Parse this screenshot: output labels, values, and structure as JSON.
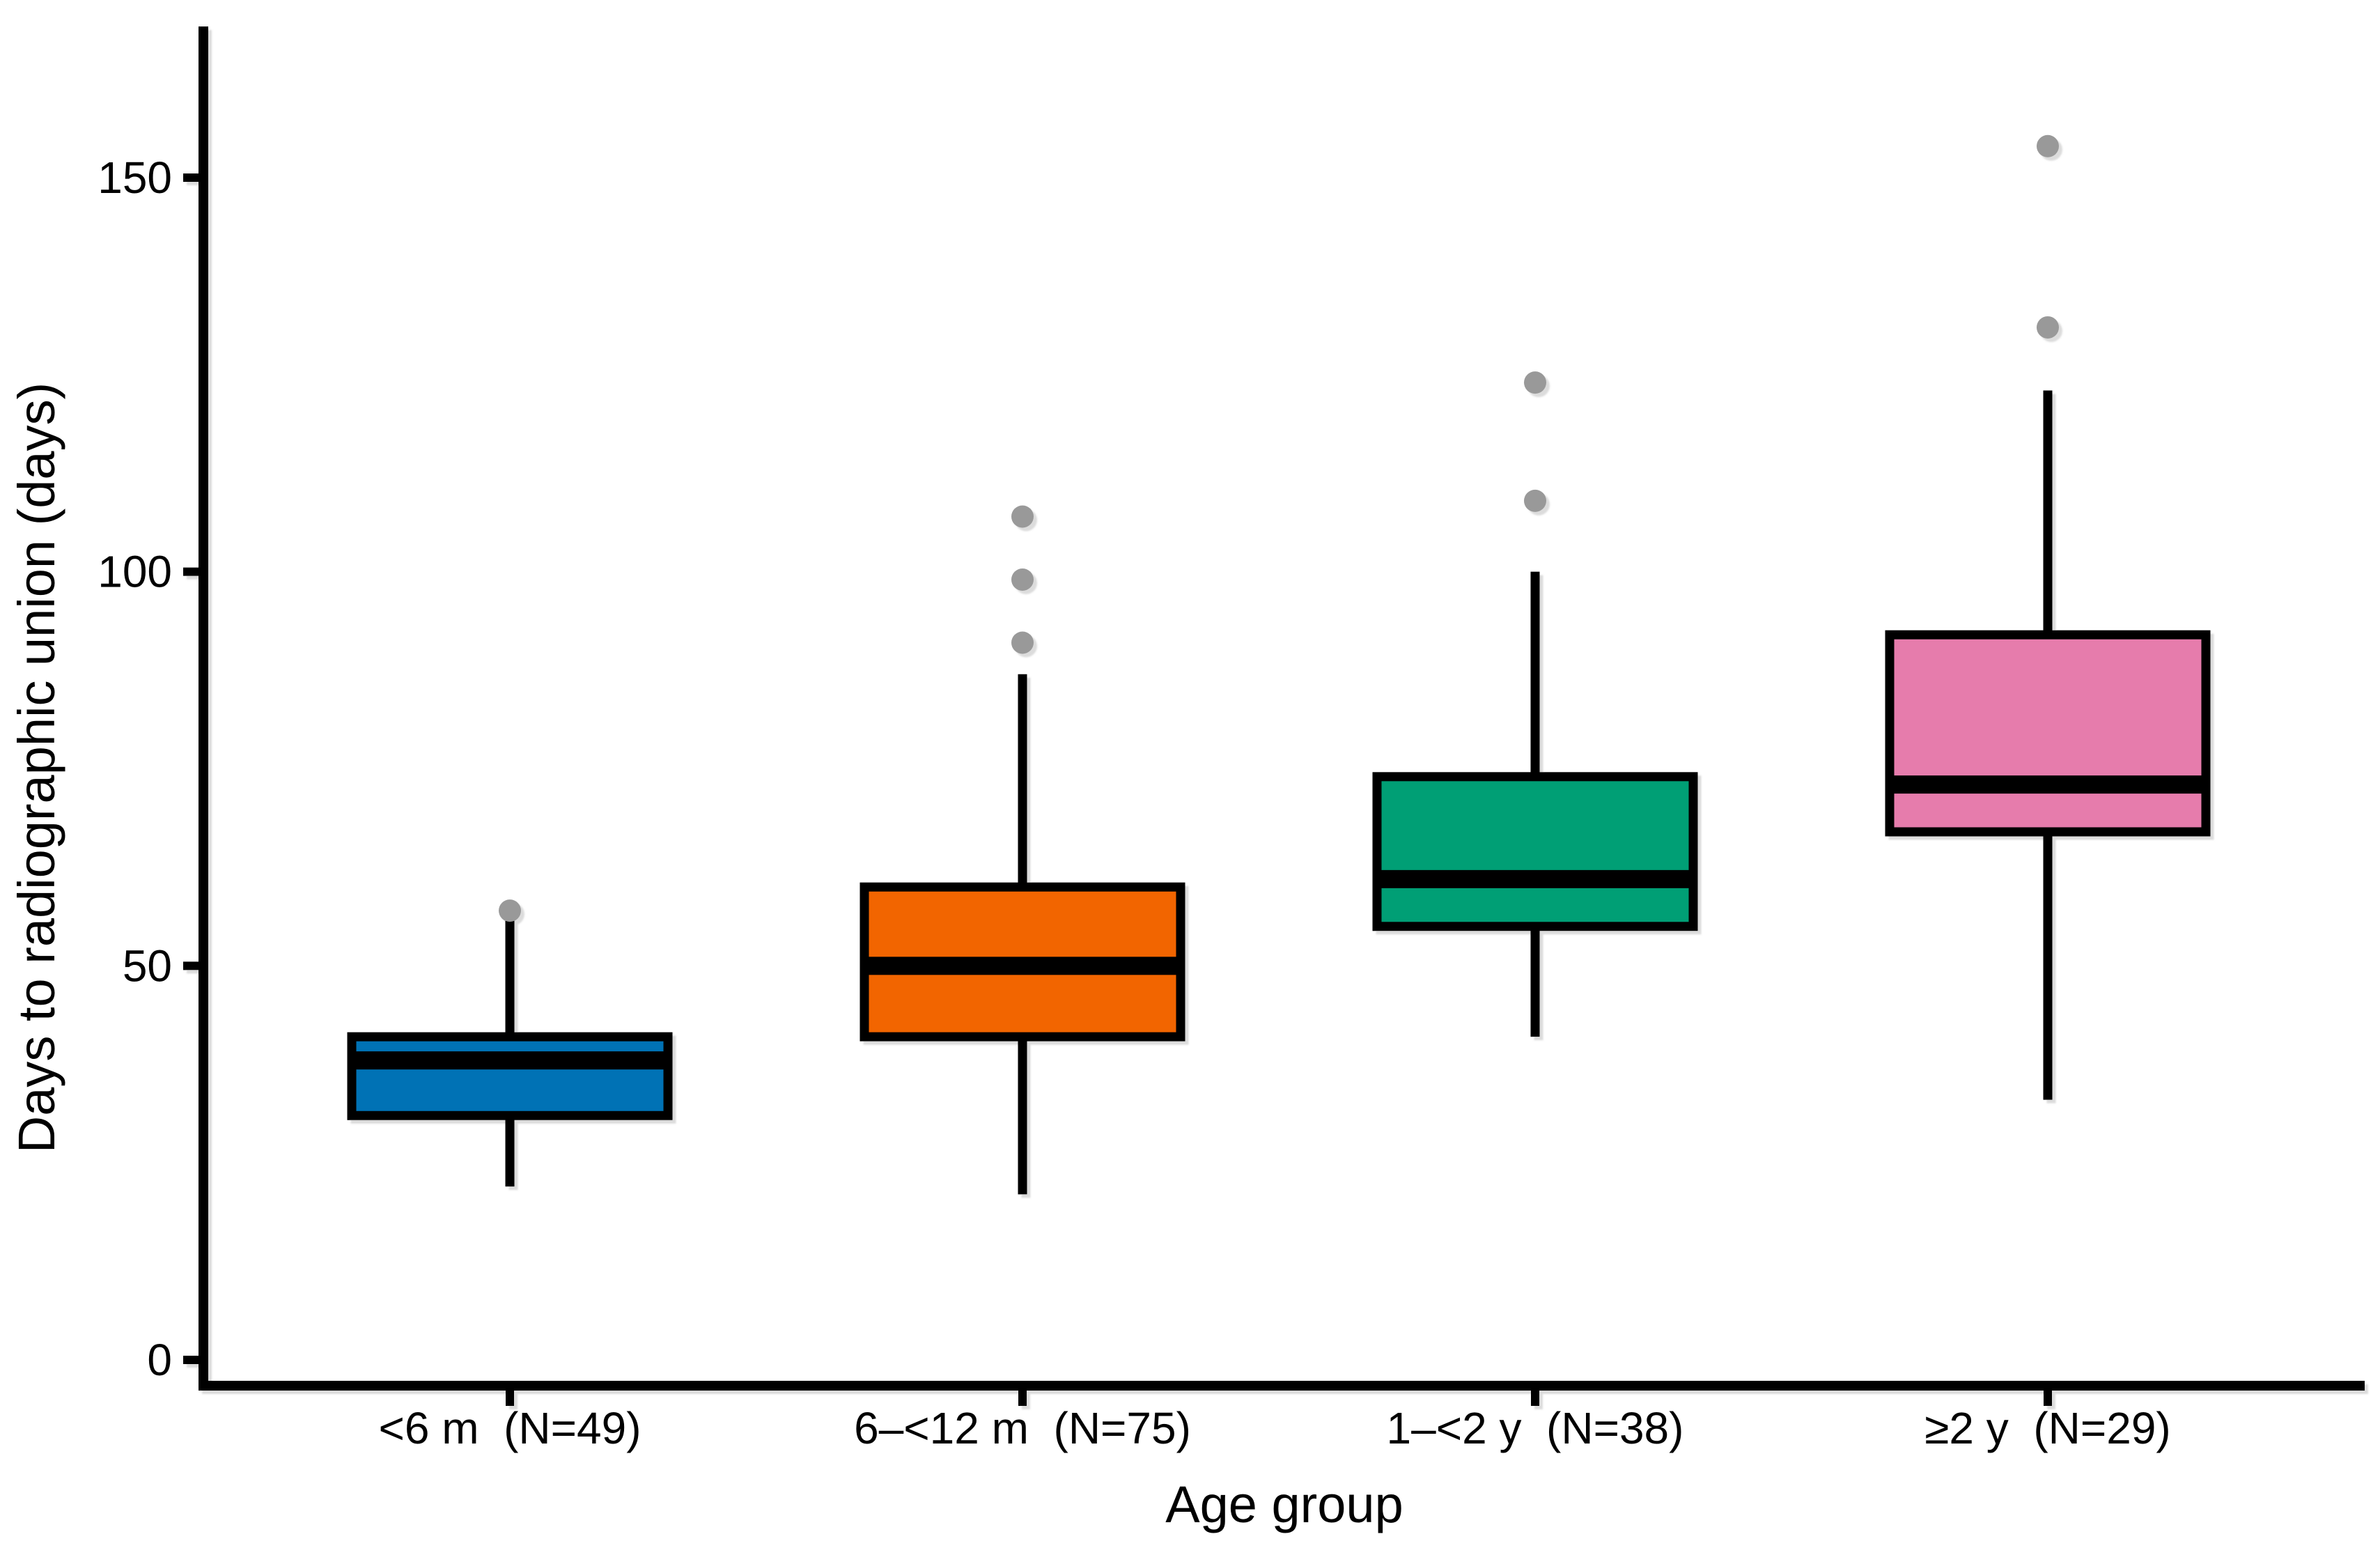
{
  "chart_data": {
    "type": "box",
    "title": "",
    "xlabel": "Age group",
    "ylabel": "Days to radiographic union (days)",
    "ylim": [
      0,
      169
    ],
    "yticks": [
      0,
      50,
      100,
      150
    ],
    "grid": false,
    "legend": "none",
    "background": "#ffffff",
    "axis_color": "#000000",
    "text_color": "#000000",
    "outlier_color": "#999999",
    "groups": [
      {
        "tick_label": "<6 m  (N=49)",
        "group": "<6 m",
        "n": 49,
        "fill": "#0072B5",
        "whisker_low": 22,
        "q1": 31,
        "median": 38,
        "q3": 41,
        "whisker_high": 56,
        "outliers": [
          57
        ]
      },
      {
        "tick_label": "6–<12 m  (N=75)",
        "group": "6–<12 m",
        "n": 75,
        "fill": "#F26500",
        "whisker_low": 21,
        "q1": 41,
        "median": 50,
        "q3": 60,
        "whisker_high": 87,
        "outliers": [
          91,
          99,
          107
        ]
      },
      {
        "tick_label": "1–<2 y  (N=38)",
        "group": "1–<2 y",
        "n": 38,
        "fill": "#009F75",
        "whisker_low": 41,
        "q1": 55,
        "median": 61,
        "q3": 74,
        "whisker_high": 100,
        "outliers": [
          109,
          124
        ]
      },
      {
        "tick_label": "≥2 y  (N=29)",
        "group": "≥2 y",
        "n": 29,
        "fill": "#E67CAC",
        "whisker_low": 33,
        "q1": 67,
        "median": 73,
        "q3": 92,
        "whisker_high": 123,
        "outliers": [
          131,
          154
        ]
      }
    ]
  }
}
